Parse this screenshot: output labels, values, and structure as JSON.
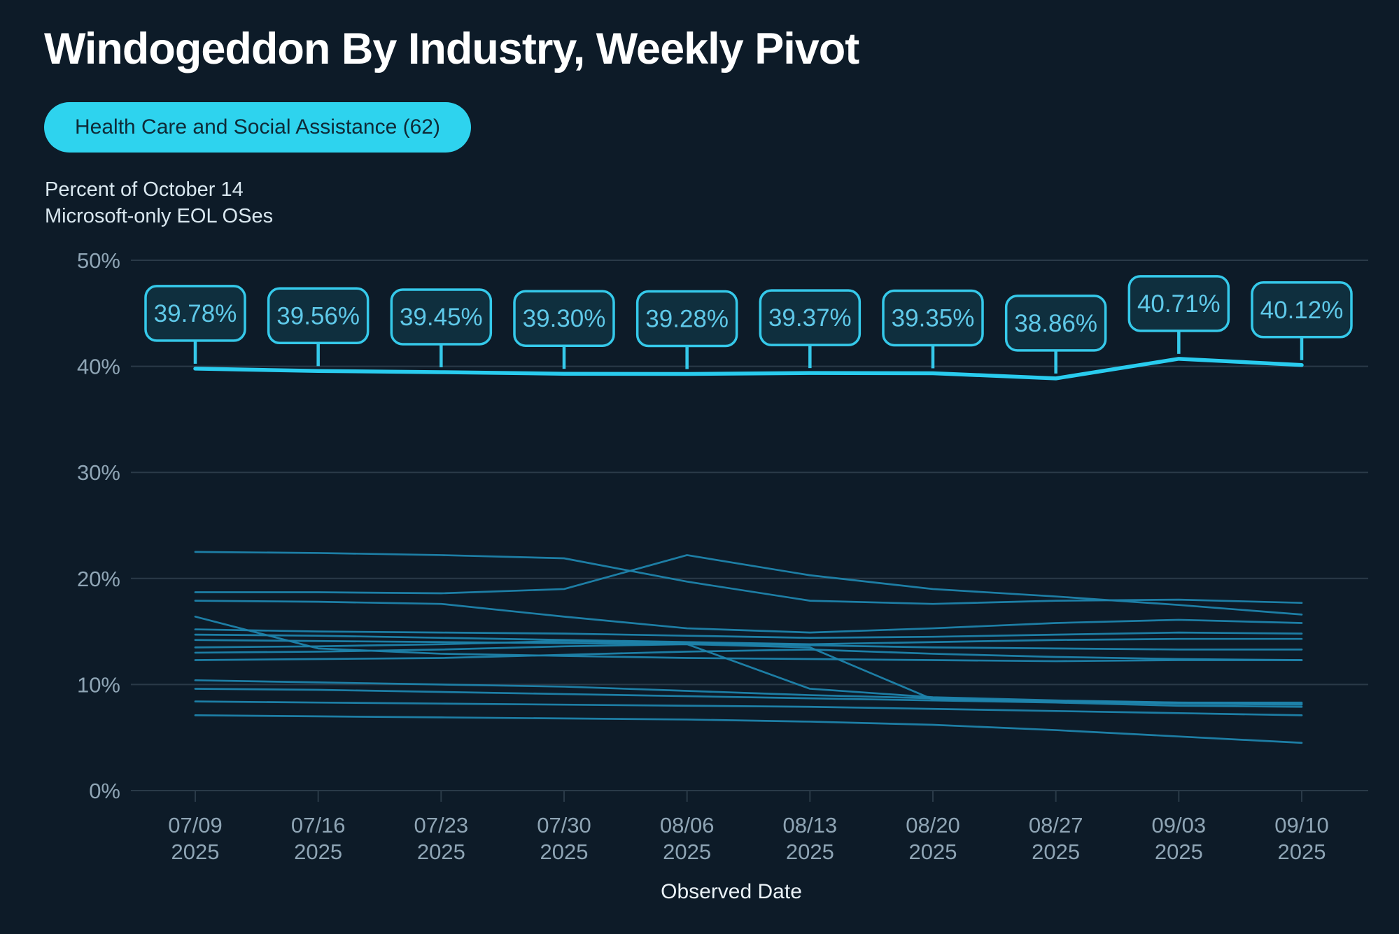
{
  "page": {
    "title": "Windogeddon By Industry, Weekly Pivot"
  },
  "colors": {
    "background": "#0d1b28",
    "title_text": "#ffffff",
    "pill_background": "#2ed3ee",
    "pill_text": "#0e2b38",
    "subtitle_text": "#d9e7ef",
    "axis_text": "#8fa5b5",
    "gridline": "#2a3a48",
    "background_line": "#1f84ac",
    "highlight_line": "#29ccef",
    "callout_border": "#35c9ea",
    "callout_fill": "#0f2f3e",
    "callout_text": "#5fc9e9",
    "x_axis_title_text": "#eaf2f7"
  },
  "chart_data": {
    "type": "line",
    "xlabel": "Observed Date",
    "ylabel_line1": "Percent of October 14",
    "ylabel_line2": "Microsoft-only EOL OSes",
    "x": [
      "07/09",
      "07/16",
      "07/23",
      "07/30",
      "08/06",
      "08/13",
      "08/20",
      "08/27",
      "09/03",
      "09/10"
    ],
    "x_year": "2025",
    "ylim": [
      0,
      50
    ],
    "y_ticks": [
      0,
      10,
      20,
      30,
      40,
      50
    ],
    "y_tick_suffix": "%",
    "grid": true,
    "legend": "none",
    "highlight_series": {
      "name": "Health Care and Social Assistance (62)",
      "values": [
        39.78,
        39.56,
        39.45,
        39.3,
        39.28,
        39.37,
        39.35,
        38.86,
        40.71,
        40.12
      ],
      "labels": [
        "39.78%",
        "39.56%",
        "39.45%",
        "39.30%",
        "39.28%",
        "39.37%",
        "39.35%",
        "38.86%",
        "40.71%",
        "40.12%"
      ]
    },
    "background_series": [
      [
        22.5,
        22.4,
        22.2,
        21.9,
        19.7,
        17.9,
        17.6,
        17.9,
        18.0,
        17.7
      ],
      [
        18.7,
        18.7,
        18.6,
        19.0,
        22.2,
        20.3,
        19.0,
        18.3,
        17.5,
        16.6
      ],
      [
        17.9,
        17.8,
        17.6,
        16.4,
        15.3,
        14.9,
        15.3,
        15.8,
        16.1,
        15.8
      ],
      [
        16.4,
        13.4,
        12.9,
        12.7,
        12.5,
        12.4,
        12.3,
        12.2,
        12.3,
        12.3
      ],
      [
        15.2,
        15.0,
        14.9,
        14.8,
        14.6,
        14.4,
        14.5,
        14.7,
        14.9,
        14.8
      ],
      [
        14.7,
        14.6,
        14.4,
        14.2,
        14.0,
        13.8,
        14.0,
        14.2,
        14.3,
        14.3
      ],
      [
        14.2,
        14.1,
        14.0,
        13.9,
        13.8,
        13.5,
        8.6,
        8.4,
        8.3,
        8.3
      ],
      [
        13.5,
        13.6,
        13.8,
        14.1,
        13.9,
        13.7,
        13.5,
        13.4,
        13.3,
        13.3
      ],
      [
        13.0,
        13.1,
        13.3,
        13.6,
        13.8,
        9.6,
        8.8,
        8.5,
        8.3,
        8.2
      ],
      [
        12.3,
        12.4,
        12.5,
        12.8,
        13.1,
        13.3,
        12.9,
        12.6,
        12.4,
        12.3
      ],
      [
        10.4,
        10.2,
        10.0,
        9.8,
        9.4,
        9.0,
        8.7,
        8.4,
        8.2,
        8.1
      ],
      [
        9.6,
        9.5,
        9.3,
        9.1,
        8.9,
        8.7,
        8.5,
        8.3,
        8.0,
        7.9
      ],
      [
        8.4,
        8.3,
        8.2,
        8.1,
        8.0,
        7.9,
        7.7,
        7.5,
        7.3,
        7.1
      ],
      [
        7.1,
        7.0,
        6.9,
        6.8,
        6.7,
        6.5,
        6.2,
        5.7,
        5.1,
        4.5
      ]
    ]
  }
}
